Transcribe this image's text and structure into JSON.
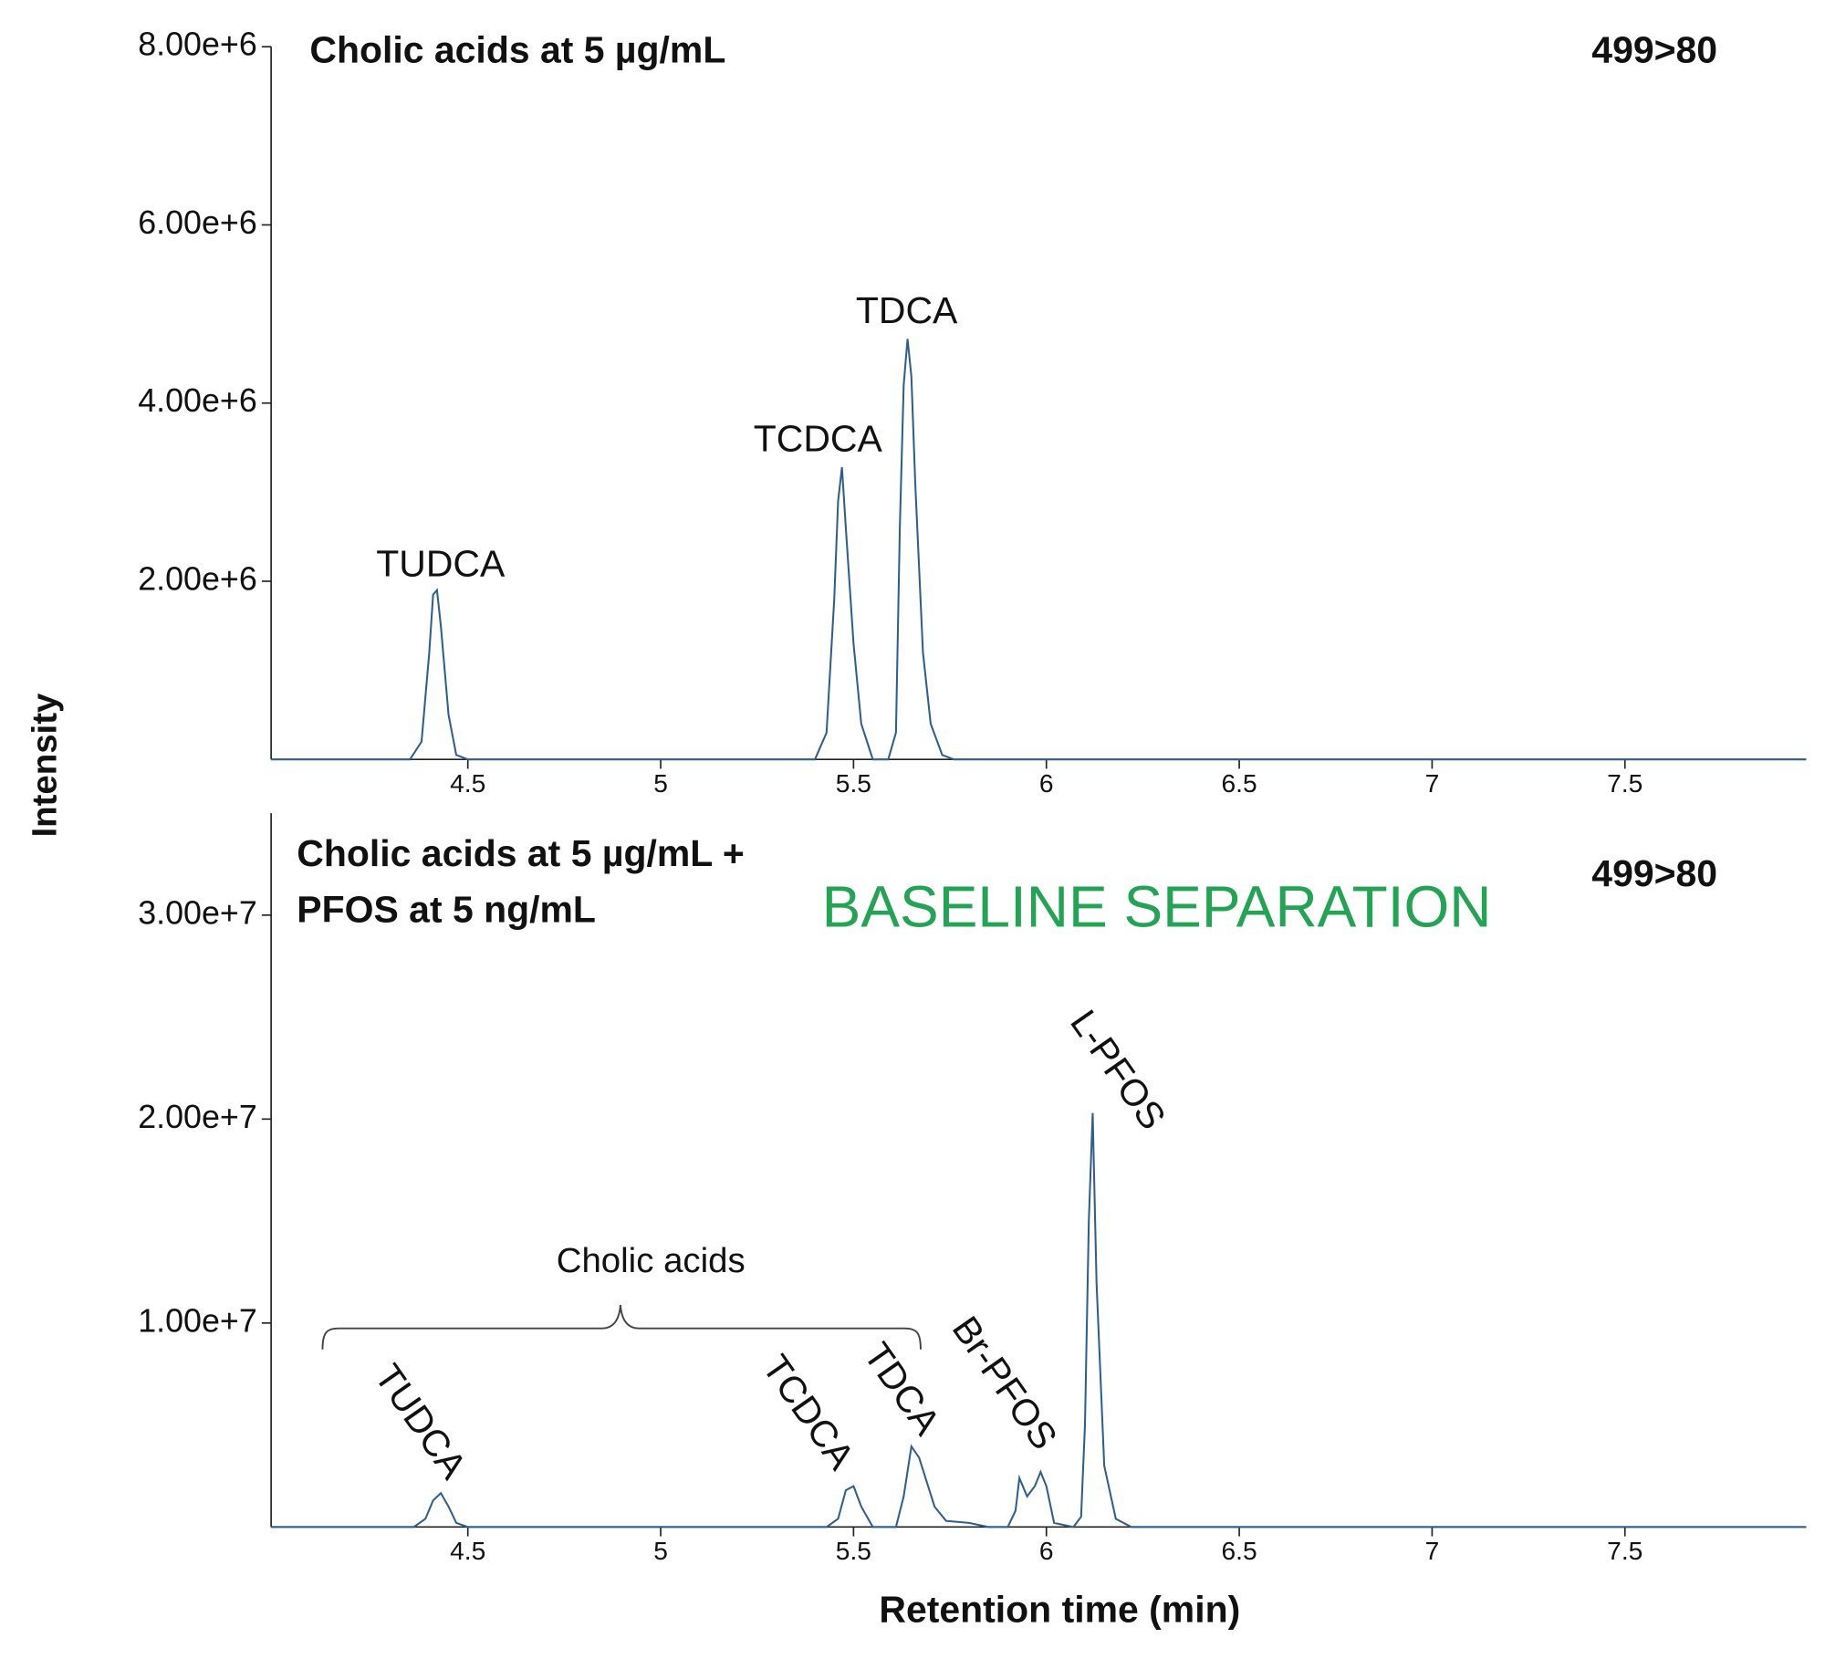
{
  "chart_data": [
    {
      "type": "line",
      "title": "Cholic acids at 5 µg/mL",
      "transition": "499>80",
      "y_label": "Intensity",
      "color": "#2f5f8f",
      "xlim": [
        3.99,
        7.97
      ],
      "xticks": [
        4.5,
        5.0,
        5.5,
        6.0,
        6.5,
        7.0,
        7.5
      ],
      "ylim": [
        0,
        8000000
      ],
      "yticks": [
        {
          "value": 2000000,
          "label": "2.00e+6"
        },
        {
          "value": 4000000,
          "label": "4.00e+6"
        },
        {
          "value": 6000000,
          "label": "6.00e+6"
        },
        {
          "value": 8000000,
          "label": "8.00e+6"
        }
      ],
      "x": [
        3.99,
        4.35,
        4.38,
        4.4,
        4.41,
        4.42,
        4.43,
        4.45,
        4.47,
        4.5,
        5.4,
        5.43,
        5.45,
        5.46,
        5.47,
        5.48,
        5.5,
        5.52,
        5.55,
        5.59,
        5.61,
        5.62,
        5.63,
        5.64,
        5.65,
        5.66,
        5.68,
        5.7,
        5.73,
        5.76,
        7.97
      ],
      "values": [
        0,
        0,
        200000,
        1200000,
        1850000,
        1900000,
        1500000,
        500000,
        50000,
        0,
        0,
        300000,
        1800000,
        2900000,
        3280000,
        2600000,
        1300000,
        400000,
        0,
        0,
        300000,
        2600000,
        4200000,
        4720000,
        4300000,
        3100000,
        1200000,
        400000,
        50000,
        0,
        0
      ],
      "annotations": [
        "TUDCA",
        "TCDCA",
        "TDCA"
      ]
    },
    {
      "type": "line",
      "title": [
        "Cholic acids at 5 µg/mL +",
        "PFOS at 5 ng/mL"
      ],
      "transition": "499>80",
      "subtitle": "BASELINE SEPARATION",
      "x_label": "Retention time (min)",
      "color": "#2f5f8f",
      "xlim": [
        3.99,
        7.97
      ],
      "xticks": [
        4.5,
        5.0,
        5.5,
        6.0,
        6.5,
        7.0,
        7.5
      ],
      "ylim": [
        0,
        35000000
      ],
      "yticks": [
        {
          "value": 10000000,
          "label": "1.00e+7"
        },
        {
          "value": 20000000,
          "label": "2.00e+7"
        },
        {
          "value": 30000000,
          "label": "3.00e+7"
        }
      ],
      "x": [
        3.99,
        4.36,
        4.39,
        4.41,
        4.43,
        4.45,
        4.47,
        4.5,
        5.43,
        5.46,
        5.48,
        5.5,
        5.52,
        5.55,
        5.61,
        5.63,
        5.65,
        5.67,
        5.69,
        5.71,
        5.74,
        5.8,
        5.85,
        5.9,
        5.92,
        5.93,
        5.95,
        5.97,
        5.985,
        6.0,
        6.02,
        6.07,
        6.09,
        6.1,
        6.11,
        6.12,
        6.13,
        6.15,
        6.18,
        6.22,
        7.97
      ],
      "values": [
        0,
        0,
        400000,
        1300000,
        1660000,
        1000000,
        200000,
        0,
        0,
        400000,
        1800000,
        2000000,
        1000000,
        0,
        0,
        1500000,
        3950000,
        3400000,
        2200000,
        1000000,
        300000,
        200000,
        0,
        0,
        800000,
        2400000,
        1500000,
        2000000,
        2700000,
        2000000,
        200000,
        0,
        500000,
        5000000,
        15000000,
        20300000,
        12000000,
        3000000,
        400000,
        0,
        0
      ],
      "group_label": "Cholic acids",
      "annotations": [
        "TUDCA",
        "TCDCA",
        "TDCA",
        "Br-PFOS",
        "L-PFOS"
      ]
    }
  ]
}
